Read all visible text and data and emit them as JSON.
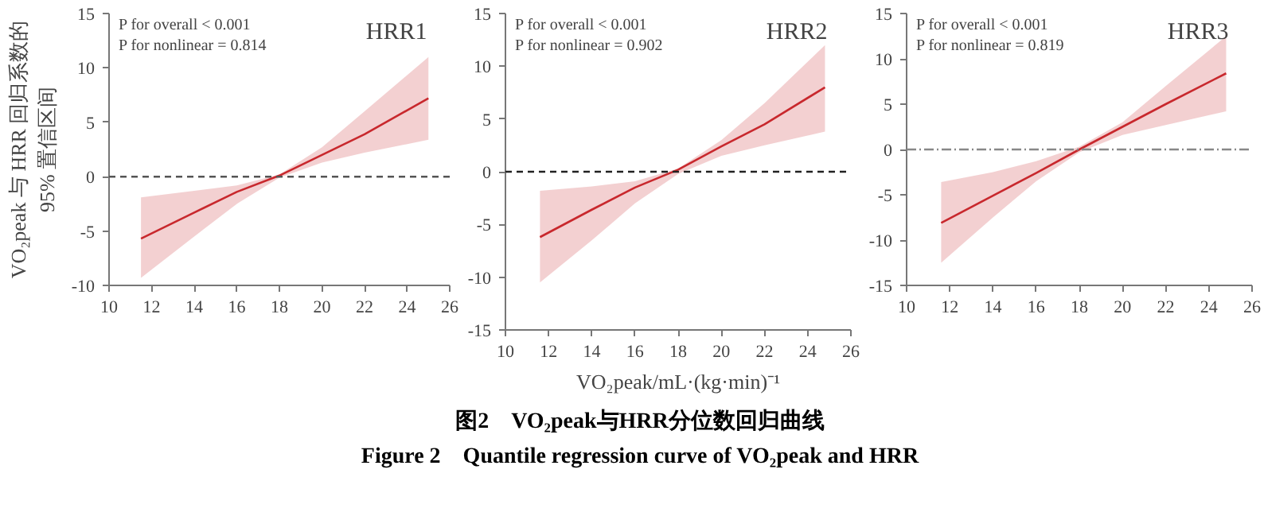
{
  "chart_data": [
    {
      "type": "line",
      "title": "HRR1",
      "ylabel": "VO₂peak 与 HRR 回归系数的\n95% 置信区间",
      "annotations": [
        "P for overall < 0.001",
        "P for nonlinear = 0.814"
      ],
      "x": [
        11.5,
        14,
        16,
        18,
        20,
        22,
        25
      ],
      "series": [
        {
          "color": "#c8282d",
          "values": [
            -5.7,
            -3.3,
            -1.4,
            0.1,
            2.0,
            3.9,
            7.2
          ],
          "lower": [
            -9.3,
            -5.5,
            -2.5,
            -0.1,
            1.3,
            2.2,
            3.4
          ],
          "upper": [
            -1.9,
            -1.3,
            -0.8,
            0.2,
            2.7,
            6.0,
            11.0
          ]
        }
      ],
      "xlim": [
        10,
        26
      ],
      "xticks": [
        10,
        12,
        14,
        16,
        18,
        20,
        22,
        24,
        26
      ],
      "ylim": [
        -10,
        15
      ],
      "yticks": [
        -10,
        -5,
        0,
        5,
        10,
        15
      ],
      "ref_lines": [
        {
          "axis": "y",
          "value": 0,
          "color": "#555555",
          "line_style": "dashed"
        }
      ]
    },
    {
      "type": "line",
      "title": "HRR2",
      "xlabel": "VO₂peak/mL·(kg·min)⁻¹",
      "annotations": [
        "P for overall < 0.001",
        "P for nonlinear = 0.902",
        "图2　VO₂peak与HRR分位数回归曲线",
        "Figure 2　Quantile regression curve of VO₂peak and HRR"
      ],
      "x": [
        11.6,
        14,
        16,
        18,
        20,
        22,
        24.8
      ],
      "series": [
        {
          "color": "#c8282d",
          "values": [
            -6.2,
            -3.6,
            -1.5,
            0.2,
            2.4,
            4.5,
            8.0
          ],
          "lower": [
            -10.5,
            -6.5,
            -3.0,
            -0.2,
            1.5,
            2.5,
            3.8
          ],
          "upper": [
            -1.8,
            -1.4,
            -0.9,
            0.3,
            3.0,
            6.5,
            12.0
          ]
        }
      ],
      "xlim": [
        10,
        26
      ],
      "xticks": [
        10,
        12,
        14,
        16,
        18,
        20,
        22,
        24,
        26
      ],
      "ylim": [
        -15,
        15
      ],
      "yticks": [
        -15,
        -10,
        -5,
        0,
        5,
        10,
        15
      ],
      "ref_lines": [
        {
          "axis": "y",
          "value": 0,
          "color": "#222222",
          "line_style": "dashed"
        }
      ]
    },
    {
      "type": "line",
      "title": "HRR3",
      "annotations": [
        "P for overall < 0.001",
        "P for nonlinear = 0.819"
      ],
      "x": [
        11.6,
        14,
        16,
        18,
        20,
        22,
        24.8
      ],
      "series": [
        {
          "color": "#c8282d",
          "values": [
            -8.1,
            -5.1,
            -2.6,
            0.0,
            2.5,
            5.0,
            8.4
          ],
          "lower": [
            -12.5,
            -7.5,
            -3.5,
            -0.3,
            1.6,
            2.7,
            4.2
          ],
          "upper": [
            -3.6,
            -2.5,
            -1.3,
            0.3,
            3.0,
            7.0,
            12.5
          ]
        }
      ],
      "xlim": [
        10,
        26
      ],
      "xticks": [
        10,
        12,
        14,
        16,
        18,
        20,
        22,
        24,
        26
      ],
      "ylim": [
        -15,
        15
      ],
      "yticks": [
        -15,
        -10,
        -5,
        0,
        5,
        10,
        15
      ],
      "ref_lines": [
        {
          "axis": "y",
          "value": 0,
          "color": "#888888",
          "line_style": "dashdot"
        }
      ]
    }
  ]
}
